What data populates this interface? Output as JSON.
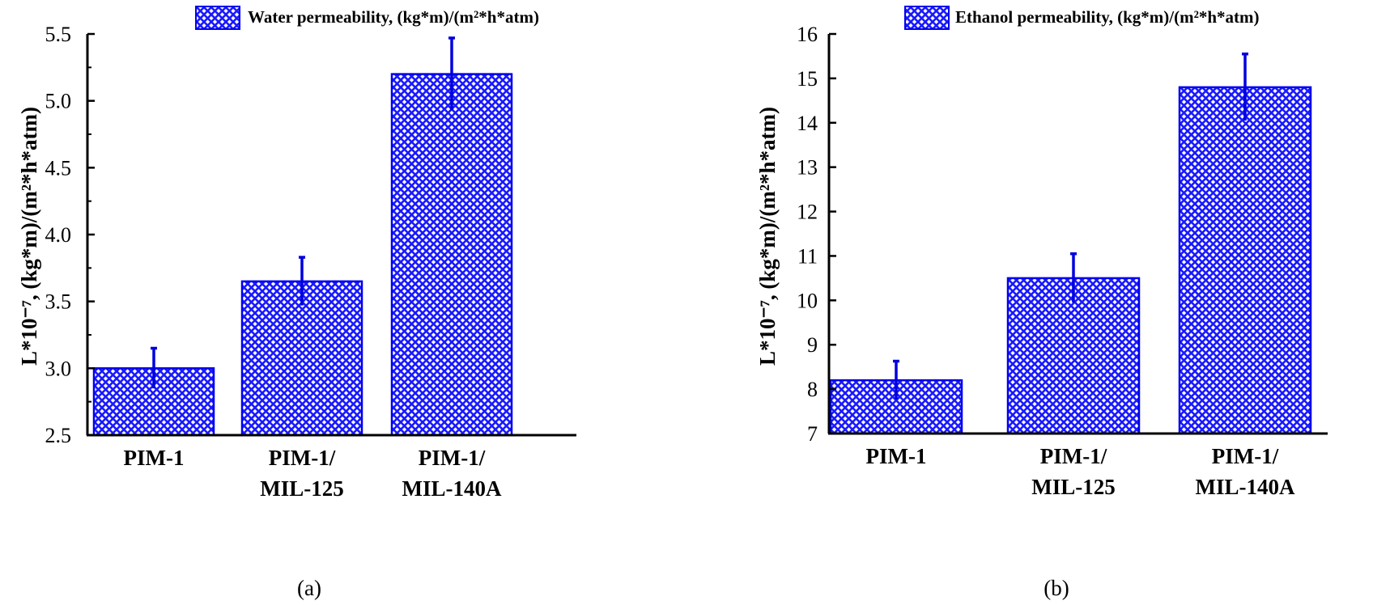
{
  "chart_data": [
    {
      "type": "bar",
      "title": "",
      "legend": "Water permeability, (kg*m)/(m²*h*atm)",
      "legend_position": "top-center",
      "categories": [
        [
          "PIM-1"
        ],
        [
          "PIM-1/",
          "MIL-125"
        ],
        [
          "PIM-1/",
          "MIL-140A"
        ]
      ],
      "values": [
        3.0,
        3.65,
        5.2
      ],
      "errors": [
        0.15,
        0.18,
        0.27
      ],
      "ylabel": "L*10⁻⁷, (kg*m)/(m²*h*atm)",
      "xlabel": "",
      "ylim": [
        2.5,
        5.5
      ],
      "yticks": [
        2.5,
        3.0,
        3.5,
        4.0,
        4.5,
        5.0,
        5.5
      ],
      "ytick_labels": [
        "2.5",
        "3.0",
        "3.5",
        "4.0",
        "4.5",
        "5.0",
        "5.5"
      ],
      "caption": "(a)"
    },
    {
      "type": "bar",
      "title": "",
      "legend": "Ethanol permeability, (kg*m)/(m²*h*atm)",
      "legend_position": "top-center",
      "categories": [
        [
          "PIM-1"
        ],
        [
          "PIM-1/",
          "MIL-125"
        ],
        [
          "PIM-1/",
          "MIL-140A"
        ]
      ],
      "values": [
        8.2,
        10.5,
        14.8
      ],
      "errors": [
        0.43,
        0.55,
        0.75
      ],
      "ylabel": "L*10⁻⁷, (kg*m)/(m²*h*atm)",
      "xlabel": "",
      "ylim": [
        7,
        16
      ],
      "yticks": [
        7,
        8,
        9,
        10,
        11,
        12,
        13,
        14,
        15,
        16
      ],
      "ytick_labels": [
        "7",
        "8",
        "9",
        "10",
        "11",
        "12",
        "13",
        "14",
        "15",
        "16"
      ],
      "caption": "(b)"
    }
  ],
  "colors": {
    "bar_fill": "#1a1aff",
    "bar_edge": "#0000ee",
    "error_bar": "#0000dd",
    "axis": "#000000"
  }
}
